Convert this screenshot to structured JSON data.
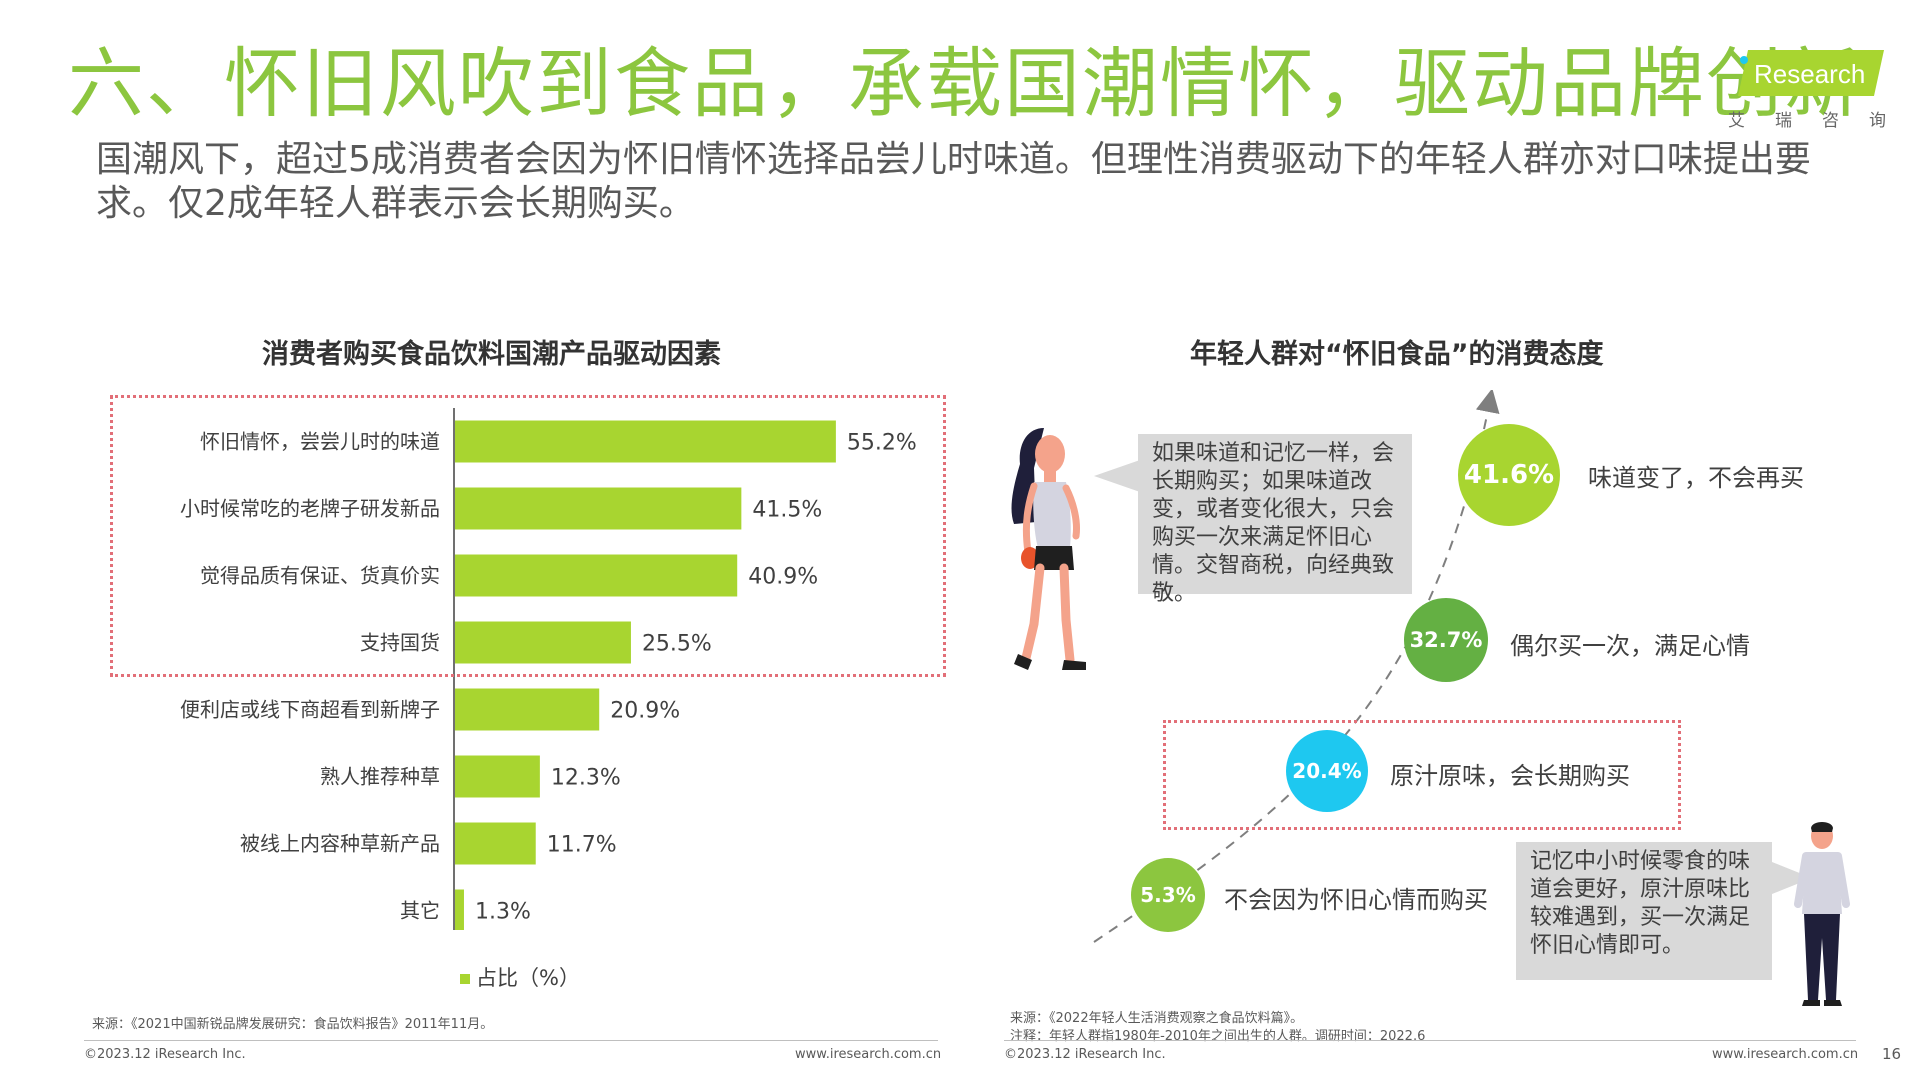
{
  "header": {
    "title": "六、怀旧风吹到食品，承载国潮情怀，驱动品牌创新",
    "subtitle": "国潮风下，超过5成消费者会因为怀旧情怀选择品尝儿时味道。但理性消费驱动下的年轻人群亦对口味提出要求。仅2成年轻人群表示会长期购买。",
    "logo_text": "Research",
    "logo_cn": "艾瑞咨询"
  },
  "chart_data": [
    {
      "type": "bar",
      "orientation": "horizontal",
      "title": "消费者购买食品饮料国潮产品驱动因素",
      "categories": [
        "怀旧情怀，尝尝儿时的味道",
        "小时候常吃的老牌子研发新品",
        "觉得品质有保证、货真价实",
        "支持国货",
        "便利店或线下商超看到新牌子",
        "熟人推荐种草",
        "被线上内容种草新产品",
        "其它"
      ],
      "series": [
        {
          "name": "占比（%）",
          "values": [
            55.2,
            41.5,
            40.9,
            25.5,
            20.9,
            12.3,
            11.7,
            1.3
          ]
        }
      ],
      "data_labels": [
        "55.2%",
        "41.5%",
        "40.9%",
        "25.5%",
        "20.9%",
        "12.3%",
        "11.7%",
        "1.3%"
      ],
      "xlim": [
        0,
        60
      ],
      "legend": "bottom",
      "color": "#a8d530"
    },
    {
      "type": "scatter",
      "title": "年轻人群对“怀旧食品”的消费态度",
      "points": [
        {
          "value": 5.3,
          "label": "5.3%",
          "text": "不会因为怀旧心情而购买",
          "color": "#8cc63f"
        },
        {
          "value": 20.4,
          "label": "20.4%",
          "text": "原汁原味，会长期购买",
          "color": "#1ec8f0"
        },
        {
          "value": 32.7,
          "label": "32.7%",
          "text": "偶尔买一次，满足心情",
          "color": "#64b043"
        },
        {
          "value": 41.6,
          "label": "41.6%",
          "text": "味道变了，不会再买",
          "color": "#a8d530"
        }
      ]
    }
  ],
  "quotes": {
    "left": "如果味道和记忆一样，会长期购买；如果味道改变，或者变化很大，只会购买一次来满足怀旧心情。交智商税，向经典致敬。",
    "right": "记忆中小时候零食的味道会更好，原汁原味比较难遇到，买一次满足怀旧心情即可。"
  },
  "sources": {
    "left": "来源：《2021中国新锐品牌发展研究：食品饮料报告》2011年11月。",
    "right_source": "来源：《2022年轻人生活消费观察之食品饮料篇》。",
    "right_note": "注释：年轻人群指1980年-2010年之间出生的人群。调研时间：2022.6"
  },
  "footer": {
    "copyright_left": "©2023.12 iResearch Inc.",
    "url_left": "www.iresearch.com.cn",
    "copyright_right": "©2023.12 iResearch Inc.",
    "url_right": "www.iresearch.com.cn",
    "page": "16"
  },
  "colors": {
    "title_green": "#8cc63f",
    "bar_green": "#a8d530",
    "highlight_box": "#e26f78"
  }
}
